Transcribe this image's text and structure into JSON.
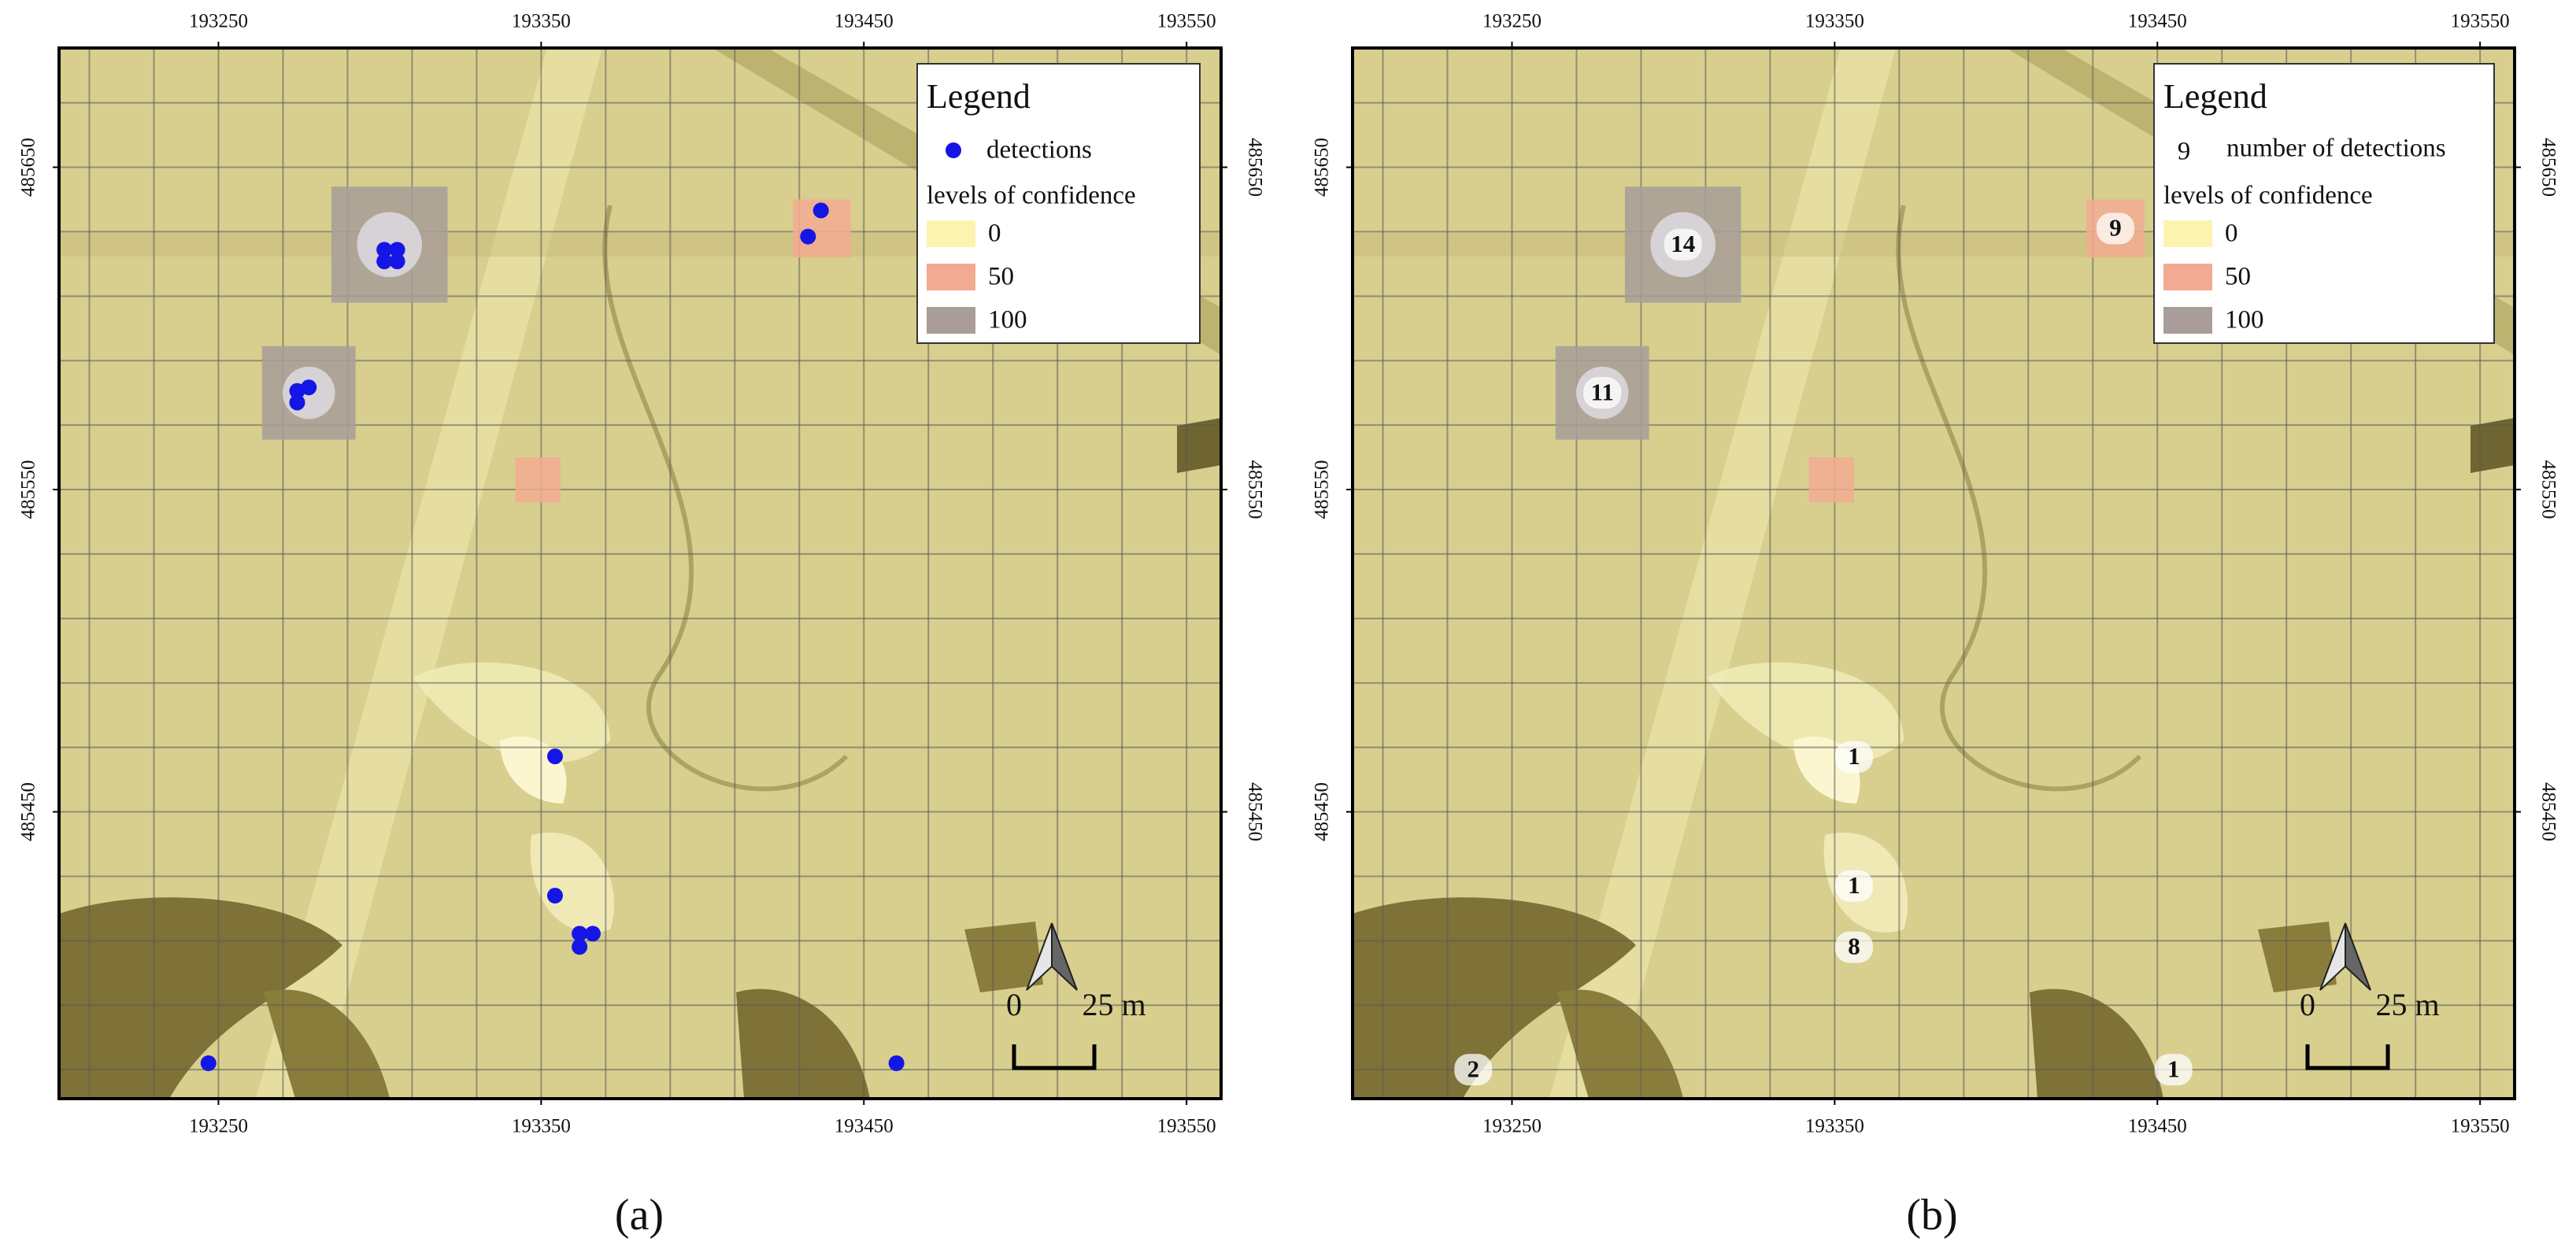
{
  "panels": [
    {
      "caption": "(a)",
      "xlim": [
        193200.6,
        193560.7
      ],
      "ylim": [
        485361,
        485687
      ],
      "xticks": [
        193250,
        193350,
        193450,
        193550
      ],
      "yticks": [
        485450,
        485550,
        485650
      ],
      "legend": {
        "title": "Legend",
        "marker": {
          "label": "detections",
          "color": "#1515e6"
        },
        "levels_title": "levels of confidence",
        "levels": [
          {
            "value": 0,
            "color": "#fdf3b0"
          },
          {
            "value": 50,
            "color": "#f2ab92"
          },
          {
            "value": 100,
            "color": "#a89d99"
          }
        ]
      },
      "confidence_areas": [
        {
          "x": 193303,
          "y": 485626,
          "size": 36,
          "level": 100
        },
        {
          "x": 193278,
          "y": 485580,
          "size": 29,
          "level": 100
        },
        {
          "x": 193437,
          "y": 485631,
          "size": 18,
          "level": 50
        },
        {
          "x": 193349,
          "y": 485553,
          "size": 14,
          "level": 50
        }
      ],
      "detections": {
        "x": [
          193301.4,
          193305.4,
          193301.4,
          193305.4,
          193278,
          193274.4,
          193274.4,
          193436.7,
          193432.7,
          193354.3,
          193354.3,
          193361.9,
          193366,
          193361.9,
          193246.9,
          193460.1
        ],
        "y": [
          485624.4,
          485624.4,
          485620.8,
          485620.8,
          485581.7,
          485580.6,
          485577,
          485636.6,
          485628.5,
          485467.2,
          485424,
          485412.2,
          485412.2,
          485408.1,
          485372,
          485372
        ]
      },
      "scale_bar": [
        "0",
        "25 m"
      ]
    },
    {
      "caption": "(b)",
      "xlim": [
        193200.6,
        193560.7
      ],
      "ylim": [
        485361,
        485687
      ],
      "xticks": [
        193250,
        193350,
        193450,
        193550
      ],
      "yticks": [
        485450,
        485550,
        485650
      ],
      "legend": {
        "title": "Legend",
        "marker": {
          "sample": 9,
          "label": "number of detections"
        },
        "levels_title": "levels of confidence",
        "levels": [
          {
            "value": 0,
            "color": "#fdf3b0"
          },
          {
            "value": 50,
            "color": "#f2ab92"
          },
          {
            "value": 100,
            "color": "#a89d99"
          }
        ]
      },
      "confidence_areas": [
        {
          "x": 193303,
          "y": 485626,
          "size": 36,
          "level": 100
        },
        {
          "x": 193278,
          "y": 485580,
          "size": 29,
          "level": 100
        },
        {
          "x": 193437,
          "y": 485631,
          "size": 18,
          "level": 50
        },
        {
          "x": 193349,
          "y": 485553,
          "size": 14,
          "level": 50
        }
      ],
      "counts": {
        "x": [
          193303,
          193278,
          193437,
          193356,
          193356,
          193356,
          193238,
          193455
        ],
        "y": [
          485626,
          485580,
          485631,
          485467,
          485427,
          485408,
          485370,
          485370
        ],
        "values": [
          14,
          11,
          9,
          1,
          1,
          8,
          2,
          1
        ]
      },
      "scale_bar": [
        "0",
        "25 m"
      ]
    }
  ]
}
